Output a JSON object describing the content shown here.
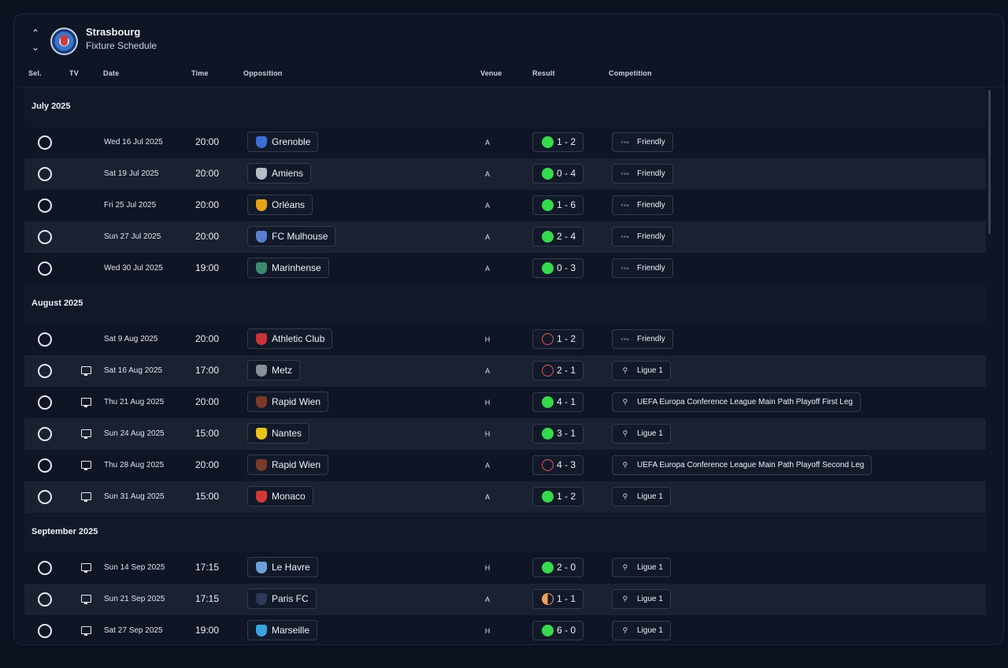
{
  "header": {
    "club_name": "Strasbourg",
    "subtitle": "Fixture Schedule",
    "up_arrow": "⌃",
    "down_arrow": "⌄"
  },
  "columns": {
    "sel": "Sel.",
    "tv": "TV",
    "date": "Date",
    "time": "Time",
    "opposition": "Opposition",
    "venue": "Venue",
    "result": "Result",
    "competition": "Competition"
  },
  "colors": {
    "win": "#37d94d",
    "loss": "#e25555",
    "draw": "#f0a060",
    "background": "#0c1120"
  },
  "icons": {
    "fifa": "FIFA",
    "ligue": "⚲",
    "uecl": "⚲"
  },
  "months": [
    {
      "label": "July 2025",
      "fixtures": [
        {
          "tv": false,
          "date": "Wed 16 Jul 2025",
          "time": "20:00",
          "opponent": "Grenoble",
          "badge": "#3b6fd1",
          "venue": "A",
          "result": "1 - 2",
          "outcome": "win",
          "competition": "Friendly",
          "comp_icon": "fifa"
        },
        {
          "tv": false,
          "date": "Sat 19 Jul 2025",
          "time": "20:00",
          "opponent": "Amiens",
          "badge": "#b7bcc6",
          "venue": "A",
          "result": "0 - 4",
          "outcome": "win",
          "competition": "Friendly",
          "comp_icon": "fifa"
        },
        {
          "tv": false,
          "date": "Fri 25 Jul 2025",
          "time": "20:00",
          "opponent": "Orléans",
          "badge": "#e4a21b",
          "venue": "A",
          "result": "1 - 6",
          "outcome": "win",
          "competition": "Friendly",
          "comp_icon": "fifa"
        },
        {
          "tv": false,
          "date": "Sun 27 Jul 2025",
          "time": "20:00",
          "opponent": "FC Mulhouse",
          "badge": "#5a7fd0",
          "venue": "A",
          "result": "2 - 4",
          "outcome": "win",
          "competition": "Friendly",
          "comp_icon": "fifa"
        },
        {
          "tv": false,
          "date": "Wed 30 Jul 2025",
          "time": "19:00",
          "opponent": "Marinhense",
          "badge": "#3e8a72",
          "venue": "A",
          "result": "0 - 3",
          "outcome": "win",
          "competition": "Friendly",
          "comp_icon": "fifa"
        }
      ]
    },
    {
      "label": "August 2025",
      "fixtures": [
        {
          "tv": false,
          "date": "Sat 9 Aug 2025",
          "time": "20:00",
          "opponent": "Athletic Club",
          "badge": "#c8353a",
          "venue": "H",
          "result": "1 - 2",
          "outcome": "loss",
          "competition": "Friendly",
          "comp_icon": "fifa"
        },
        {
          "tv": true,
          "date": "Sat 16 Aug 2025",
          "time": "17:00",
          "opponent": "Metz",
          "badge": "#8a8f99",
          "venue": "A",
          "result": "2 - 1",
          "outcome": "loss",
          "competition": "Ligue 1",
          "comp_icon": "ligue"
        },
        {
          "tv": true,
          "date": "Thu 21 Aug 2025",
          "time": "20:00",
          "opponent": "Rapid Wien",
          "badge": "#7a3a2a",
          "venue": "H",
          "result": "4 - 1",
          "outcome": "win",
          "competition": "UEFA Europa Conference League Main Path Playoff First Leg",
          "comp_icon": "uecl"
        },
        {
          "tv": true,
          "date": "Sun 24 Aug 2025",
          "time": "15:00",
          "opponent": "Nantes",
          "badge": "#e8c51c",
          "venue": "H",
          "result": "3 - 1",
          "outcome": "win",
          "competition": "Ligue 1",
          "comp_icon": "ligue"
        },
        {
          "tv": true,
          "date": "Thu 28 Aug 2025",
          "time": "20:00",
          "opponent": "Rapid Wien",
          "badge": "#7a3a2a",
          "venue": "A",
          "result": "4 - 3",
          "outcome": "loss",
          "competition": "UEFA Europa Conference League Main Path Playoff Second Leg",
          "comp_icon": "uecl"
        },
        {
          "tv": true,
          "date": "Sun 31 Aug 2025",
          "time": "15:00",
          "opponent": "Monaco",
          "badge": "#d13a3a",
          "venue": "A",
          "result": "1 - 2",
          "outcome": "win",
          "competition": "Ligue 1",
          "comp_icon": "ligue"
        }
      ]
    },
    {
      "label": "September 2025",
      "fixtures": [
        {
          "tv": true,
          "date": "Sun 14 Sep 2025",
          "time": "17:15",
          "opponent": "Le Havre",
          "badge": "#6f9fd8",
          "venue": "H",
          "result": "2 - 0",
          "outcome": "win",
          "competition": "Ligue 1",
          "comp_icon": "ligue"
        },
        {
          "tv": true,
          "date": "Sun 21 Sep 2025",
          "time": "17:15",
          "opponent": "Paris FC",
          "badge": "#2d3a5a",
          "venue": "A",
          "result": "1 - 1",
          "outcome": "draw",
          "competition": "Ligue 1",
          "comp_icon": "ligue"
        },
        {
          "tv": true,
          "date": "Sat 27 Sep 2025",
          "time": "19:00",
          "opponent": "Marseille",
          "badge": "#3ba3e0",
          "venue": "H",
          "result": "6 - 0",
          "outcome": "win",
          "competition": "Ligue 1",
          "comp_icon": "ligue"
        }
      ]
    }
  ]
}
